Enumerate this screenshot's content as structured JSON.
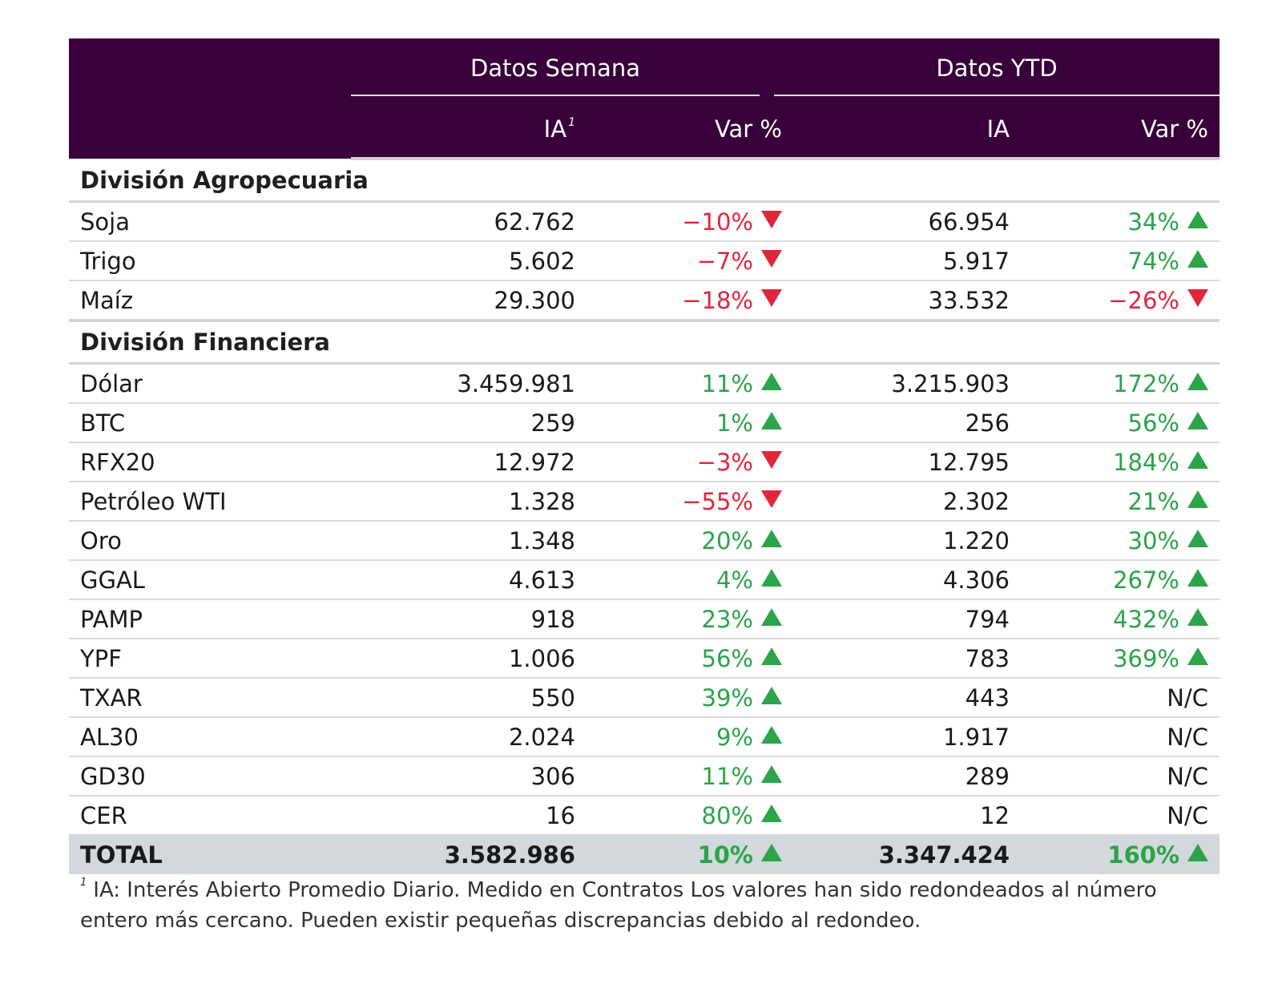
{
  "header": {
    "group_week": "Datos Semana",
    "group_ytd": "Datos YTD",
    "col_ia_week": "IA",
    "col_ia_week_sup": "1",
    "col_var_week": "Var %",
    "col_ia_ytd": "IA",
    "col_var_ytd": "Var %",
    "bg_color": "#39003c"
  },
  "sections": [
    {
      "title": "División Agropecuaria",
      "rows": [
        {
          "name": "Soja",
          "ia_week": "62.762",
          "var_week": "−10%",
          "dir_week": "down",
          "ia_ytd": "66.954",
          "var_ytd": "34%",
          "dir_ytd": "up"
        },
        {
          "name": "Trigo",
          "ia_week": "5.602",
          "var_week": "−7%",
          "dir_week": "down",
          "ia_ytd": "5.917",
          "var_ytd": "74%",
          "dir_ytd": "up"
        },
        {
          "name": "Maíz",
          "ia_week": "29.300",
          "var_week": "−18%",
          "dir_week": "down",
          "ia_ytd": "33.532",
          "var_ytd": "−26%",
          "dir_ytd": "down"
        }
      ]
    },
    {
      "title": "División Financiera",
      "rows": [
        {
          "name": "Dólar",
          "ia_week": "3.459.981",
          "var_week": "11%",
          "dir_week": "up",
          "ia_ytd": "3.215.903",
          "var_ytd": "172%",
          "dir_ytd": "up"
        },
        {
          "name": "BTC",
          "ia_week": "259",
          "var_week": "1%",
          "dir_week": "up",
          "ia_ytd": "256",
          "var_ytd": "56%",
          "dir_ytd": "up"
        },
        {
          "name": "RFX20",
          "ia_week": "12.972",
          "var_week": "−3%",
          "dir_week": "down",
          "ia_ytd": "12.795",
          "var_ytd": "184%",
          "dir_ytd": "up"
        },
        {
          "name": "Petróleo WTI",
          "ia_week": "1.328",
          "var_week": "−55%",
          "dir_week": "down",
          "ia_ytd": "2.302",
          "var_ytd": "21%",
          "dir_ytd": "up"
        },
        {
          "name": "Oro",
          "ia_week": "1.348",
          "var_week": "20%",
          "dir_week": "up",
          "ia_ytd": "1.220",
          "var_ytd": "30%",
          "dir_ytd": "up"
        },
        {
          "name": "GGAL",
          "ia_week": "4.613",
          "var_week": "4%",
          "dir_week": "up",
          "ia_ytd": "4.306",
          "var_ytd": "267%",
          "dir_ytd": "up"
        },
        {
          "name": "PAMP",
          "ia_week": "918",
          "var_week": "23%",
          "dir_week": "up",
          "ia_ytd": "794",
          "var_ytd": "432%",
          "dir_ytd": "up"
        },
        {
          "name": "YPF",
          "ia_week": "1.006",
          "var_week": "56%",
          "dir_week": "up",
          "ia_ytd": "783",
          "var_ytd": "369%",
          "dir_ytd": "up"
        },
        {
          "name": "TXAR",
          "ia_week": "550",
          "var_week": "39%",
          "dir_week": "up",
          "ia_ytd": "443",
          "var_ytd": "N/C",
          "dir_ytd": "none"
        },
        {
          "name": "AL30",
          "ia_week": "2.024",
          "var_week": "9%",
          "dir_week": "up",
          "ia_ytd": "1.917",
          "var_ytd": "N/C",
          "dir_ytd": "none"
        },
        {
          "name": "GD30",
          "ia_week": "306",
          "var_week": "11%",
          "dir_week": "up",
          "ia_ytd": "289",
          "var_ytd": "N/C",
          "dir_ytd": "none"
        },
        {
          "name": "CER",
          "ia_week": "16",
          "var_week": "80%",
          "dir_week": "up",
          "ia_ytd": "12",
          "var_ytd": "N/C",
          "dir_ytd": "none"
        }
      ]
    }
  ],
  "total": {
    "name": "TOTAL",
    "ia_week": "3.582.986",
    "var_week": "10%",
    "dir_week": "up",
    "ia_ytd": "3.347.424",
    "var_ytd": "160%",
    "dir_ytd": "up"
  },
  "footnote": {
    "marker": "1",
    "text": "IA: Interés Abierto Promedio Diario. Medido en Contratos Los valores han sido redondeados al número entero más cercano. Pueden existir pequeñas discrepancias debido al redondeo."
  },
  "colors": {
    "positive": "#2ca44a",
    "negative": "#e0263c",
    "total_bg": "#d2d8db"
  }
}
